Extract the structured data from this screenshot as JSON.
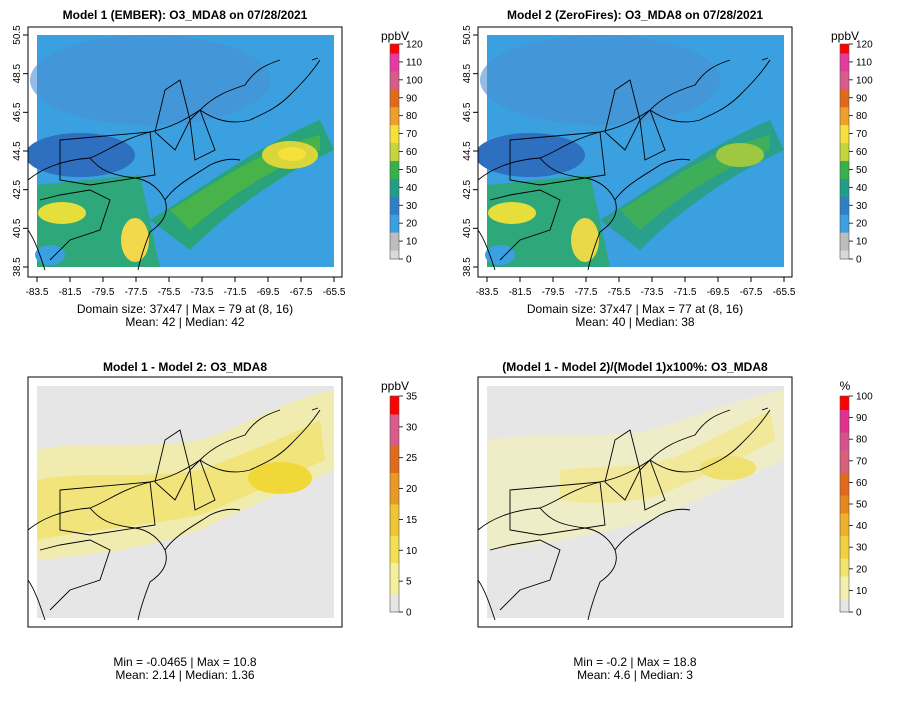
{
  "chart_data": [
    {
      "type": "heatmap",
      "title": "Model 1 (EMBER): O3_MDA8 on 07/28/2021",
      "unit": "ppbV",
      "colorbar_ticks": [
        "0",
        "10",
        "20",
        "30",
        "40",
        "50",
        "60",
        "70",
        "80",
        "90",
        "100",
        "110",
        "120"
      ],
      "colorbar_range": [
        0,
        120
      ],
      "colormap": [
        "#d9d9d9",
        "#bdbdbd",
        "#3aa0e0",
        "#2f7fc8",
        "#1f9f8a",
        "#35b34a",
        "#c6d63a",
        "#f6e13c",
        "#f0a02a",
        "#e06a1a",
        "#d85b8a",
        "#e63aa0",
        "#ff0000"
      ],
      "x_ticks": [
        "-83.5",
        "-81.5",
        "-79.5",
        "-77.5",
        "-75.5",
        "-73.5",
        "-71.5",
        "-69.5",
        "-67.5",
        "-65.5"
      ],
      "y_ticks": [
        "38.5",
        "40.5",
        "42.5",
        "44.5",
        "46.5",
        "48.5",
        "50.5"
      ],
      "xlim": [
        -83.5,
        -65.5
      ],
      "ylim": [
        38.5,
        50.5
      ],
      "grid": false,
      "legend": "right",
      "caption_1": "Domain size: 37x47 | Max = 79 at (8, 16)",
      "caption_2": "Mean: 42 |  Median: 42"
    },
    {
      "type": "heatmap",
      "title": "Model 2 (ZeroFires): O3_MDA8 on 07/28/2021",
      "unit": "ppbV",
      "colorbar_ticks": [
        "0",
        "10",
        "20",
        "30",
        "40",
        "50",
        "60",
        "70",
        "80",
        "90",
        "100",
        "110",
        "120"
      ],
      "colorbar_range": [
        0,
        120
      ],
      "x_ticks": [
        "-83.5",
        "-81.5",
        "-79.5",
        "-77.5",
        "-75.5",
        "-73.5",
        "-71.5",
        "-69.5",
        "-67.5",
        "-65.5"
      ],
      "y_ticks": [
        "38.5",
        "40.5",
        "42.5",
        "44.5",
        "46.5",
        "48.5",
        "50.5"
      ],
      "xlim": [
        -83.5,
        -65.5
      ],
      "ylim": [
        38.5,
        50.5
      ],
      "grid": false,
      "legend": "right",
      "caption_1": "Domain size: 37x47 | Max = 77 at (8, 16)",
      "caption_2": "Mean: 40 |  Median: 38"
    },
    {
      "type": "heatmap",
      "title": "Model 1 - Model 2: O3_MDA8",
      "unit": "ppbV",
      "colorbar_ticks": [
        "0",
        "5",
        "10",
        "15",
        "20",
        "25",
        "30",
        "35"
      ],
      "colorbar_range": [
        0,
        35
      ],
      "grid": false,
      "legend": "right",
      "caption_1": "Min = -0.0465 | Max = 10.8",
      "caption_2": "Mean: 2.14 |  Median: 1.36"
    },
    {
      "type": "heatmap",
      "title": "(Model 1 - Model 2)/(Model 1)x100%: O3_MDA8",
      "unit": "%",
      "colorbar_ticks": [
        "0",
        "10",
        "20",
        "30",
        "40",
        "50",
        "60",
        "70",
        "80",
        "90",
        "100"
      ],
      "colorbar_range": [
        0,
        100
      ],
      "grid": false,
      "legend": "right",
      "caption_1": "Min = -0.2 | Max = 18.8",
      "caption_2": "Mean: 4.6 |  Median: 3"
    }
  ]
}
